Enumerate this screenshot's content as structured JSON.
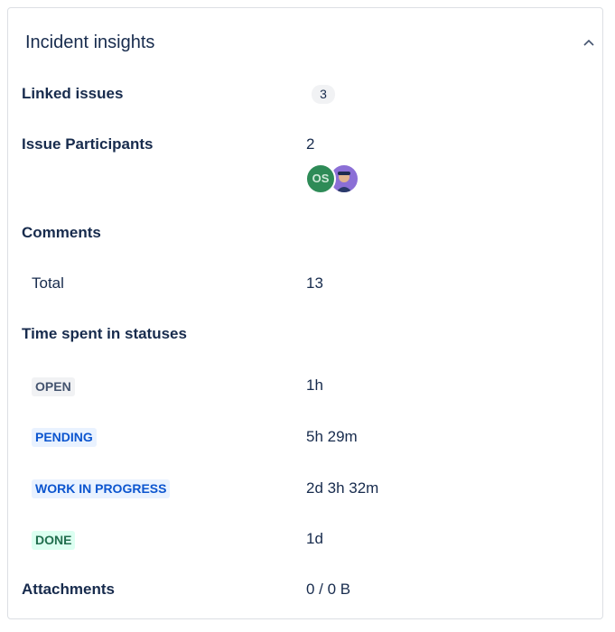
{
  "panel": {
    "title": "Incident insights",
    "collapse_icon": "chevron-up-icon"
  },
  "linked_issues": {
    "label": "Linked issues",
    "count": "3"
  },
  "participants": {
    "label": "Issue Participants",
    "count": "2",
    "avatars": [
      {
        "initials": "OS",
        "color": "#2e8b57"
      },
      {
        "type": "avatar-image",
        "color": "#8b6fd6"
      }
    ]
  },
  "comments": {
    "label": "Comments",
    "total_label": "Total",
    "total": "13"
  },
  "statuses": {
    "label": "Time spent in statuses",
    "items": [
      {
        "name": "OPEN",
        "time": "1h",
        "bg": "#f1f2f4",
        "fg": "#44546f"
      },
      {
        "name": "PENDING",
        "time": "5h 29m",
        "bg": "#e9f2ff",
        "fg": "#0c55cf"
      },
      {
        "name": "WORK IN PROGRESS",
        "time": "2d 3h 32m",
        "bg": "#e9f2ff",
        "fg": "#0c55cf"
      },
      {
        "name": "DONE",
        "time": "1d",
        "bg": "#dcfff1",
        "fg": "#216e4e"
      }
    ]
  },
  "attachments": {
    "label": "Attachments",
    "value": "0 / 0 B"
  }
}
